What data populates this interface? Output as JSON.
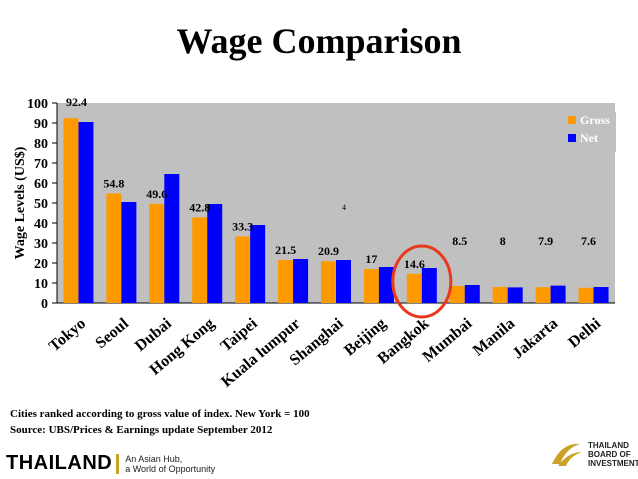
{
  "chart_data": {
    "type": "bar",
    "title": "Wage Comparison",
    "xlabel": "",
    "ylabel": "Wage Levels (US$)",
    "ylim": [
      0,
      100
    ],
    "yticks": [
      0,
      10,
      20,
      30,
      40,
      50,
      60,
      70,
      80,
      90,
      100
    ],
    "categories": [
      "Tokyo",
      "Seoul",
      "Dubai",
      "Hong Kong",
      "Taipei",
      "Kuala lumpur",
      "Shanghai",
      "Beijing",
      "Bangkok",
      "Mumbai",
      "Manila",
      "Jakarta",
      "Delhi"
    ],
    "series": [
      {
        "name": "Gross",
        "color": "#ff9900",
        "values": [
          92.4,
          54.8,
          49.6,
          42.8,
          33.3,
          21.5,
          20.9,
          17,
          14.6,
          8.5,
          8,
          7.9,
          7.6
        ]
      },
      {
        "name": "Net",
        "color": "#0000ff",
        "values": [
          90.5,
          50.5,
          64.5,
          49.5,
          39.0,
          22.0,
          21.5,
          18.0,
          17.5,
          9.0,
          7.8,
          8.7,
          8.0
        ]
      }
    ],
    "data_labels": [
      "92.4",
      "54.8",
      "49.6",
      "42.8",
      "33.3",
      "21.5",
      "20.9",
      "17",
      "14.6",
      "8.5",
      "8",
      "7.9",
      "7.6"
    ],
    "stray_label": "4",
    "highlight_category": "Bangkok",
    "legend": {
      "position": "top-right",
      "items": [
        "Gross",
        "Net"
      ]
    },
    "plot_background": "#c0c0c0",
    "highlight_color": "#e8391d"
  },
  "footnote": {
    "line1": "Cities ranked according to gross value of index. New York = 100",
    "line2": "Source: UBS/Prices & Earnings update September 2012"
  },
  "branding": {
    "left_logo": "THAILAND",
    "tagline_1": "An Asian Hub,",
    "tagline_2": "a World of Opportunity",
    "right_logo_line1": "THAILAND",
    "right_logo_line2": "BOARD OF",
    "right_logo_line3": "INVESTMENT"
  }
}
